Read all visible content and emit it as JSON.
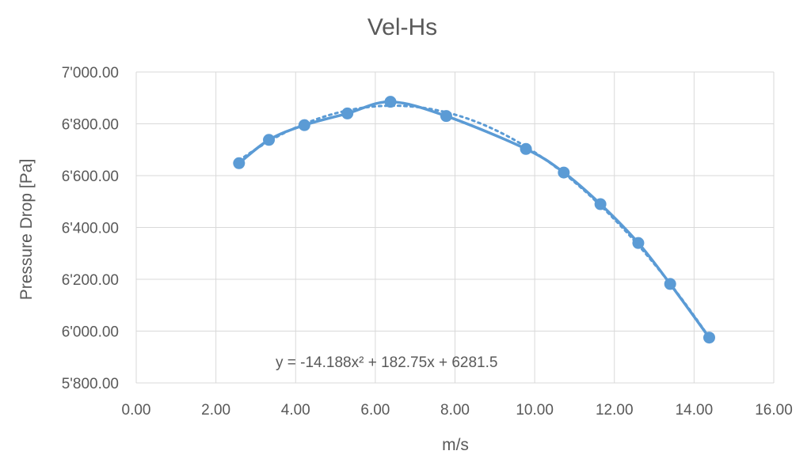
{
  "chart_data": {
    "type": "scatter",
    "title": "Vel-Hs",
    "xlabel": "m/s",
    "ylabel": "Pressure Drop [Pa]",
    "xlim": [
      0,
      16
    ],
    "ylim": [
      5800,
      7000
    ],
    "x_ticks": [
      "0.00",
      "2.00",
      "4.00",
      "6.00",
      "8.00",
      "10.00",
      "12.00",
      "14.00",
      "16.00"
    ],
    "y_ticks": [
      "5'800.00",
      "6'000.00",
      "6'200.00",
      "6'400.00",
      "6'600.00",
      "6'800.00",
      "7'000.00"
    ],
    "grid": true,
    "legend": "none",
    "series": [
      {
        "style": "smooth line with markers",
        "color": "#5b9bd5",
        "x": [
          2.58,
          3.33,
          4.22,
          5.3,
          6.38,
          7.78,
          9.78,
          10.73,
          11.65,
          12.6,
          13.4,
          14.38
        ],
        "y": [
          6648,
          6738,
          6795,
          6840,
          6885,
          6830,
          6703,
          6612,
          6490,
          6340,
          6182,
          5975
        ]
      }
    ],
    "trendline": {
      "type": "polynomial",
      "order": 2,
      "style": "dotted",
      "color": "#5b9bd5",
      "coefficients": [
        -14.188,
        182.75,
        6281.5
      ],
      "x_range": [
        2.58,
        14.38
      ],
      "equation_label": "y = -14.188x² + 182.75x + 6281.5"
    }
  }
}
